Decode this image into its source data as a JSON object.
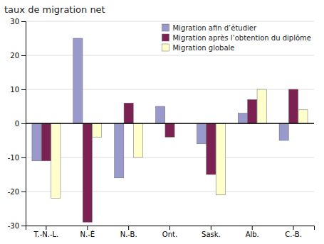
{
  "chart_data": {
    "type": "bar",
    "title": "taux de migration net",
    "categories": [
      "T.-N.-L.",
      "N.-É",
      "N.-B.",
      "Ont.",
      "Sask.",
      "Alb.",
      "C.-B."
    ],
    "series": [
      {
        "name": "Migration afin d’étudier",
        "color": "#9999cc",
        "values": [
          -11,
          25,
          -16,
          5,
          -6,
          3,
          -5
        ]
      },
      {
        "name": "Migration après l’obtention du diplôme",
        "color": "#7b2252",
        "values": [
          -11,
          -29,
          6,
          -4,
          -15,
          7,
          10
        ]
      },
      {
        "name": "Migration globale",
        "color": "#ffffcc",
        "values": [
          -22,
          -4,
          -10,
          0,
          -21,
          10,
          4
        ]
      }
    ],
    "ylim": [
      -30,
      30
    ],
    "yticks": [
      -30,
      -20,
      -10,
      0,
      10,
      20,
      30
    ],
    "grid": true,
    "legend": "upper right"
  }
}
